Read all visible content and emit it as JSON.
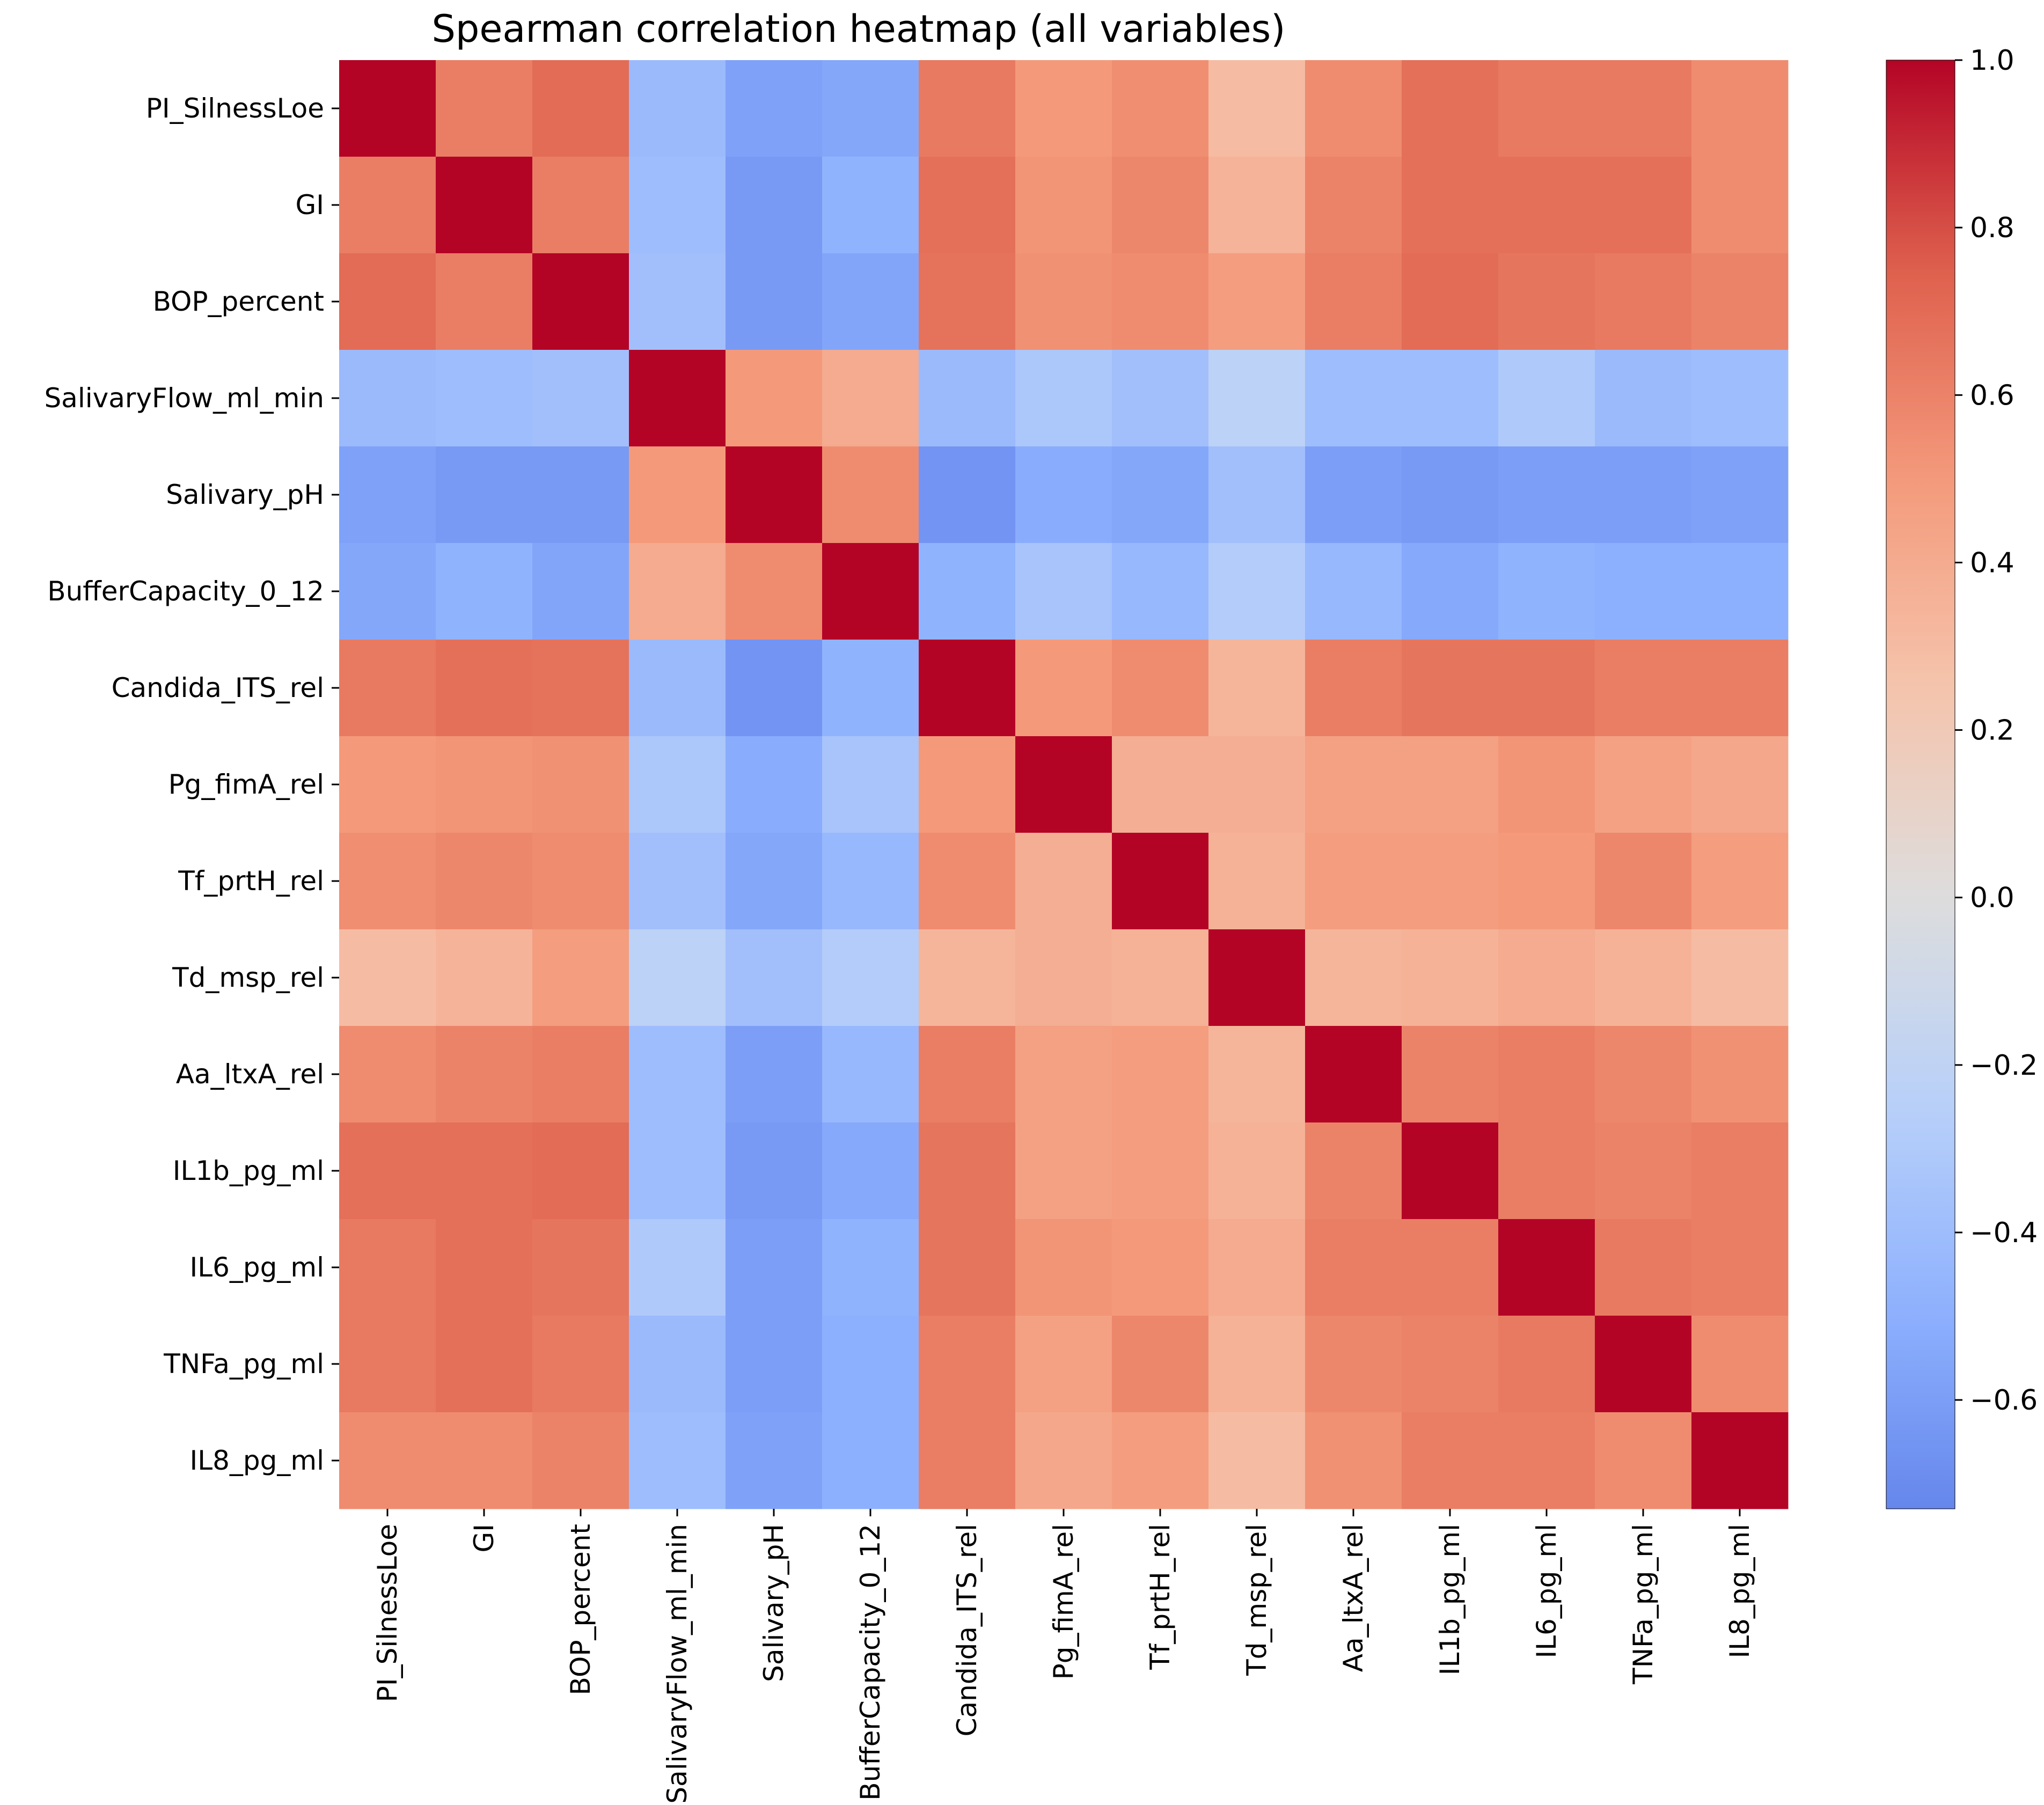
{
  "chart_data": {
    "type": "heatmap",
    "title": "Spearman correlation heatmap (all variables)",
    "xlabel": "",
    "ylabel": "",
    "grid": false,
    "legend": "colorbar-right",
    "colormap": "coolwarm",
    "vmin": -0.73,
    "vmax": 1.0,
    "colorbar_ticks": [
      -0.6,
      -0.4,
      -0.2,
      0.0,
      0.2,
      0.4,
      0.6,
      0.8,
      1.0
    ],
    "colorbar_tick_labels": [
      "−0.6",
      "−0.4",
      "−0.2",
      "0.0",
      "0.2",
      "0.4",
      "0.6",
      "0.8",
      "1.0"
    ],
    "variables": [
      "PI_SilnessLoe",
      "GI",
      "BOP_percent",
      "SalivaryFlow_ml_min",
      "Salivary_pH",
      "BufferCapacity_0_12",
      "Candida_ITS_rel",
      "Pg_fimA_rel",
      "Tf_prtH_rel",
      "Td_msp_rel",
      "Aa_ltxA_rel",
      "IL1b_pg_ml",
      "IL6_pg_ml",
      "TNFa_pg_ml",
      "IL8_pg_ml"
    ],
    "matrix": [
      [
        1.0,
        0.62,
        0.7,
        -0.42,
        -0.58,
        -0.55,
        0.64,
        0.5,
        0.55,
        0.3,
        0.56,
        0.68,
        0.64,
        0.64,
        0.56
      ],
      [
        0.62,
        1.0,
        0.62,
        -0.4,
        -0.62,
        -0.48,
        0.68,
        0.52,
        0.58,
        0.35,
        0.6,
        0.68,
        0.68,
        0.68,
        0.56
      ],
      [
        0.7,
        0.62,
        1.0,
        -0.38,
        -0.62,
        -0.56,
        0.67,
        0.54,
        0.56,
        0.48,
        0.62,
        0.7,
        0.66,
        0.64,
        0.6
      ],
      [
        -0.42,
        -0.4,
        -0.38,
        1.0,
        0.5,
        0.4,
        -0.42,
        -0.32,
        -0.38,
        -0.22,
        -0.4,
        -0.4,
        -0.3,
        -0.42,
        -0.4
      ],
      [
        -0.58,
        -0.62,
        -0.62,
        0.5,
        1.0,
        0.56,
        -0.65,
        -0.52,
        -0.55,
        -0.38,
        -0.6,
        -0.62,
        -0.6,
        -0.6,
        -0.58
      ],
      [
        -0.55,
        -0.48,
        -0.56,
        0.4,
        0.56,
        1.0,
        -0.48,
        -0.34,
        -0.44,
        -0.28,
        -0.44,
        -0.54,
        -0.48,
        -0.5,
        -0.5
      ],
      [
        0.64,
        0.68,
        0.67,
        -0.42,
        -0.65,
        -0.48,
        1.0,
        0.5,
        0.56,
        0.34,
        0.62,
        0.66,
        0.66,
        0.62,
        0.62
      ],
      [
        0.5,
        0.52,
        0.54,
        -0.32,
        -0.52,
        -0.34,
        0.5,
        1.0,
        0.38,
        0.38,
        0.46,
        0.46,
        0.52,
        0.46,
        0.42
      ],
      [
        0.55,
        0.58,
        0.56,
        -0.38,
        -0.55,
        -0.44,
        0.56,
        0.38,
        1.0,
        0.36,
        0.48,
        0.48,
        0.5,
        0.58,
        0.48
      ],
      [
        0.3,
        0.35,
        0.48,
        -0.22,
        -0.38,
        -0.28,
        0.34,
        0.38,
        0.36,
        1.0,
        0.34,
        0.36,
        0.4,
        0.36,
        0.3
      ],
      [
        0.56,
        0.6,
        0.62,
        -0.4,
        -0.6,
        -0.44,
        0.62,
        0.46,
        0.48,
        0.34,
        1.0,
        0.6,
        0.62,
        0.58,
        0.54
      ],
      [
        0.68,
        0.68,
        0.7,
        -0.4,
        -0.62,
        -0.54,
        0.66,
        0.46,
        0.48,
        0.36,
        0.6,
        1.0,
        0.62,
        0.6,
        0.62
      ],
      [
        0.64,
        0.68,
        0.66,
        -0.3,
        -0.6,
        -0.48,
        0.66,
        0.52,
        0.5,
        0.4,
        0.62,
        0.62,
        1.0,
        0.64,
        0.62
      ],
      [
        0.64,
        0.68,
        0.64,
        -0.42,
        -0.6,
        -0.5,
        0.62,
        0.46,
        0.58,
        0.36,
        0.58,
        0.6,
        0.64,
        1.0,
        0.56
      ],
      [
        0.56,
        0.56,
        0.6,
        -0.4,
        -0.58,
        -0.5,
        0.62,
        0.42,
        0.48,
        0.3,
        0.54,
        0.62,
        0.62,
        0.56,
        1.0
      ]
    ]
  }
}
